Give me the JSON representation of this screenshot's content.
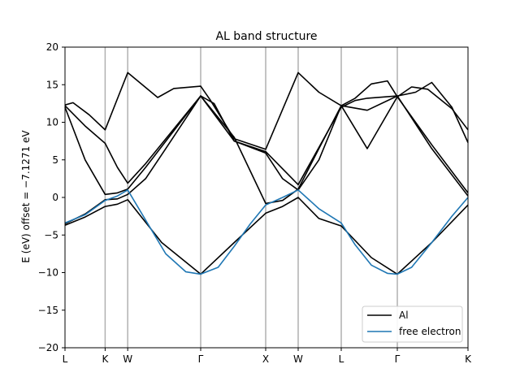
{
  "chart_data": {
    "type": "line",
    "title": "AL band structure",
    "xlabel": "",
    "ylabel": "E (eV) offset = −7.1271 eV",
    "ylim": [
      -20,
      20
    ],
    "yticks": [
      20,
      15,
      10,
      5,
      0,
      -5,
      -10,
      -15,
      -20
    ],
    "y_tick_labels": [
      "20",
      "15",
      "10",
      "5",
      "0",
      "−5",
      "−10",
      "−15",
      "−20"
    ],
    "x_range": [
      0,
      1
    ],
    "high_symmetry_points": [
      {
        "label": "L",
        "x": 0.0
      },
      {
        "label": "K",
        "x": 0.0996
      },
      {
        "label": "W",
        "x": 0.1556
      },
      {
        "label": "Γ",
        "x": 0.3367
      },
      {
        "label": "X",
        "x": 0.498
      },
      {
        "label": "W",
        "x": 0.5786
      },
      {
        "label": "L",
        "x": 0.6855
      },
      {
        "label": "Γ",
        "x": 0.8246
      },
      {
        "label": "K",
        "x": 1.0
      }
    ],
    "grid": "vertical lines at high-symmetry points",
    "legend": {
      "position": "lower-right",
      "entries": [
        {
          "name": "Al",
          "color": "#000000"
        },
        {
          "name": "free electron",
          "color": "#1f77b4"
        }
      ]
    },
    "series": [
      {
        "name": "Al",
        "color": "#000000",
        "x": [
          0.0,
          0.05,
          0.0996,
          0.13,
          0.1556,
          0.24,
          0.3367,
          0.42,
          0.498,
          0.54,
          0.5786,
          0.63,
          0.6855,
          0.76,
          0.8246,
          0.91,
          1.0
        ],
        "y": [
          -3.7,
          -2.6,
          -1.2,
          -0.9,
          -0.3,
          -6.0,
          -10.2,
          -6.0,
          -2.1,
          -1.2,
          0.0,
          -2.8,
          -3.8,
          -8.0,
          -10.2,
          -6.0,
          -1.0
        ]
      },
      {
        "name": "Al",
        "color": "#000000",
        "x": [
          0.0,
          0.05,
          0.0996,
          0.13,
          0.1556,
          0.2,
          0.25,
          0.3367,
          0.42,
          0.498,
          0.54,
          0.5786,
          0.63,
          0.6855,
          0.75,
          0.8246,
          0.91,
          1.0
        ],
        "y": [
          -3.5,
          -2.2,
          -0.3,
          -0.2,
          0.4,
          2.5,
          6.5,
          13.5,
          7.5,
          5.9,
          2.5,
          1.0,
          5.0,
          12.2,
          11.6,
          13.5,
          6.5,
          0.2
        ]
      },
      {
        "name": "Al",
        "color": "#000000",
        "x": [
          0.0,
          0.05,
          0.0996,
          0.13,
          0.1556,
          0.2,
          0.3367,
          0.42,
          0.498,
          0.54,
          0.5786,
          0.63,
          0.6855,
          0.75,
          0.8246,
          0.91,
          1.0
        ],
        "y": [
          12.0,
          5.0,
          0.4,
          0.6,
          1.1,
          4.0,
          13.5,
          8.0,
          -0.8,
          -0.4,
          1.1,
          6.5,
          12.2,
          6.5,
          13.4,
          7.0,
          0.6
        ]
      },
      {
        "name": "Al",
        "color": "#000000",
        "x": [
          0.0,
          0.05,
          0.0996,
          0.13,
          0.1556,
          0.2,
          0.3367,
          0.37,
          0.42,
          0.498,
          0.5786,
          0.6855,
          0.72,
          0.75,
          0.8246,
          0.87,
          0.91,
          0.96,
          1.0
        ],
        "y": [
          12.2,
          9.5,
          7.2,
          4.0,
          1.9,
          4.5,
          13.5,
          12.5,
          7.5,
          6.1,
          1.7,
          12.0,
          12.9,
          13.2,
          13.5,
          14.0,
          15.3,
          12.0,
          7.3
        ]
      },
      {
        "name": "Al",
        "color": "#000000",
        "x": [
          0.0,
          0.02,
          0.06,
          0.0996,
          0.1556,
          0.23,
          0.27,
          0.3367,
          0.36,
          0.42,
          0.498,
          0.5786,
          0.63,
          0.6855,
          0.72,
          0.76,
          0.8,
          0.8246,
          0.86,
          0.9,
          0.96,
          1.0
        ],
        "y": [
          12.3,
          12.6,
          11.0,
          9.0,
          16.6,
          13.3,
          14.5,
          14.8,
          13.0,
          7.8,
          6.4,
          16.6,
          14.0,
          12.2,
          13.2,
          15.1,
          15.5,
          13.4,
          14.7,
          14.4,
          11.8,
          9.0
        ]
      },
      {
        "name": "free electron",
        "color": "#1f77b4",
        "x": [
          0.0,
          0.05,
          0.0996,
          0.13,
          0.1556,
          0.2,
          0.25,
          0.3,
          0.3367,
          0.38,
          0.42,
          0.46,
          0.498,
          0.54,
          0.5786,
          0.63,
          0.6855,
          0.72,
          0.76,
          0.8,
          0.8246,
          0.86,
          0.91,
          0.96,
          1.0
        ],
        "y": [
          -3.4,
          -2.3,
          -0.4,
          0.2,
          1.0,
          -3.0,
          -7.5,
          -9.9,
          -10.2,
          -9.3,
          -6.5,
          -3.5,
          -1.0,
          0.0,
          1.0,
          -1.5,
          -3.4,
          -6.3,
          -9.0,
          -10.1,
          -10.2,
          -9.3,
          -6.0,
          -2.5,
          0.0
        ]
      }
    ]
  }
}
